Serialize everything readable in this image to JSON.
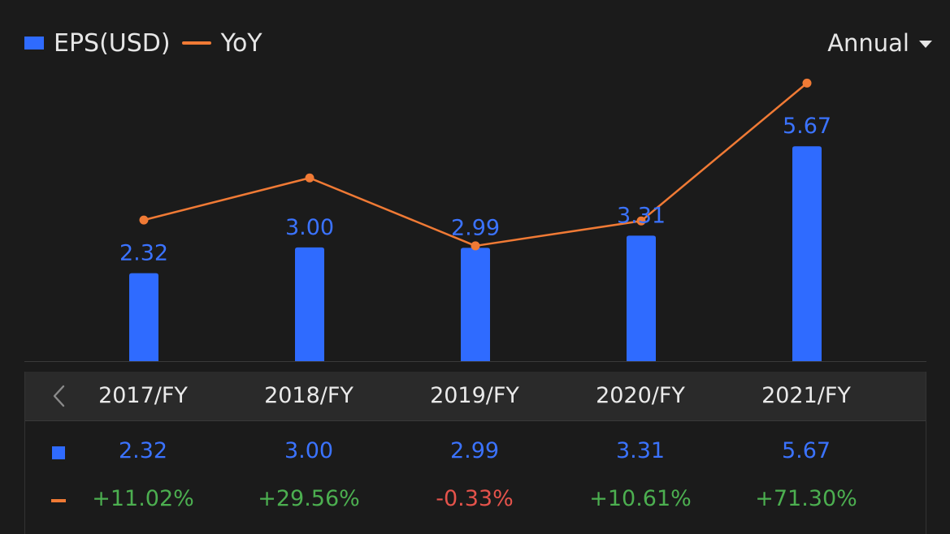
{
  "legend": {
    "bar_label": "EPS(USD)",
    "line_label": "YoY"
  },
  "period_selector": {
    "value": "Annual"
  },
  "colors": {
    "bar": "#2f6bff",
    "line": "#f07a35",
    "positive": "#4caf50",
    "negative": "#e5534b",
    "background": "#1b1b1b"
  },
  "chart_data": {
    "type": "bar",
    "categories": [
      "2017/FY",
      "2018/FY",
      "2019/FY",
      "2020/FY",
      "2021/FY"
    ],
    "series": [
      {
        "name": "EPS(USD)",
        "type": "bar",
        "values": [
          2.32,
          3.0,
          2.99,
          3.31,
          5.67
        ]
      },
      {
        "name": "YoY",
        "type": "line",
        "values": [
          11.02,
          29.56,
          -0.33,
          10.61,
          71.3
        ],
        "unit": "%"
      }
    ],
    "bar_labels": [
      "2.32",
      "3.00",
      "2.99",
      "3.31",
      "5.67"
    ],
    "grid": false,
    "legend_position": "top-left"
  },
  "table": {
    "columns": [
      "2017/FY",
      "2018/FY",
      "2019/FY",
      "2020/FY",
      "2021/FY"
    ],
    "eps_row": [
      "2.32",
      "3.00",
      "2.99",
      "3.31",
      "5.67"
    ],
    "yoy_row": [
      "+11.02%",
      "+29.56%",
      "-0.33%",
      "+10.61%",
      "+71.30%"
    ]
  },
  "icons": {
    "prev": "chevron-left-icon",
    "dropdown": "caret-down-icon"
  }
}
